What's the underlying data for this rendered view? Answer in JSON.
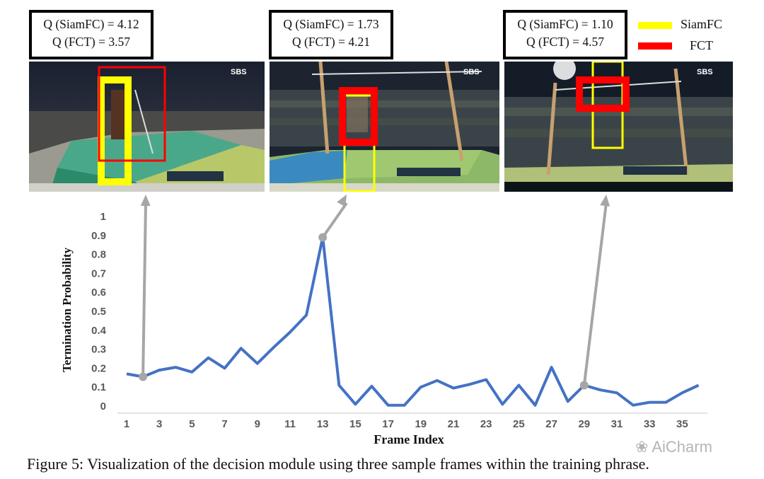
{
  "panels": [
    {
      "q_siamfc": "Q (SiamFC) = 4.12",
      "q_fct": "Q (FCT) = 3.57",
      "broadcaster": "SBS",
      "frame": 2
    },
    {
      "q_siamfc": "Q (SiamFC) = 1.73",
      "q_fct": "Q (FCT) = 4.21",
      "broadcaster": "SBS",
      "frame": 13
    },
    {
      "q_siamfc": "Q (SiamFC) = 1.10",
      "q_fct": "Q (FCT) = 4.57",
      "broadcaster": "SBS",
      "frame": 29
    }
  ],
  "legend": {
    "items": [
      {
        "label": "SiamFC",
        "color": "#ffff00"
      },
      {
        "label": "FCT",
        "color": "#ff0000"
      }
    ]
  },
  "caption": "Figure 5: Visualization of the decision module using three sample frames within the training phrase.",
  "watermark": "AiCharm",
  "colors": {
    "line": "#4472c4",
    "arrow": "#a6a6a6",
    "axis": "#d9d9d9",
    "tick_text": "#595959"
  },
  "chart_data": {
    "type": "line",
    "title": "",
    "xlabel": "Frame Index",
    "ylabel": "Termination Probability",
    "ylim": [
      0,
      1
    ],
    "yticks": [
      "0",
      "0.1",
      "0.2",
      "0.3",
      "0.4",
      "0.5",
      "0.6",
      "0.7",
      "0.8",
      "0.9",
      "1"
    ],
    "xtick_labels": [
      "1",
      "3",
      "5",
      "7",
      "9",
      "11",
      "13",
      "15",
      "17",
      "19",
      "21",
      "23",
      "25",
      "27",
      "29",
      "31",
      "33",
      "35"
    ],
    "x": [
      1,
      2,
      3,
      4,
      5,
      6,
      7,
      8,
      9,
      10,
      11,
      12,
      13,
      14,
      15,
      16,
      17,
      18,
      19,
      20,
      21,
      22,
      23,
      24,
      25,
      26,
      27,
      28,
      29,
      30,
      31,
      32,
      33,
      34,
      35,
      36
    ],
    "series": [
      {
        "values": [
          0.17,
          0.155,
          0.19,
          0.205,
          0.18,
          0.255,
          0.2,
          0.305,
          0.225,
          0.31,
          0.39,
          0.48,
          0.89,
          0.11,
          0.01,
          0.105,
          0.005,
          0.005,
          0.1,
          0.135,
          0.095,
          0.115,
          0.14,
          0.01,
          0.11,
          0.005,
          0.205,
          0.025,
          0.11,
          0.085,
          0.07,
          0.005,
          0.02,
          0.02,
          0.07,
          0.11
        ]
      }
    ],
    "grid": false,
    "legend": "none"
  }
}
